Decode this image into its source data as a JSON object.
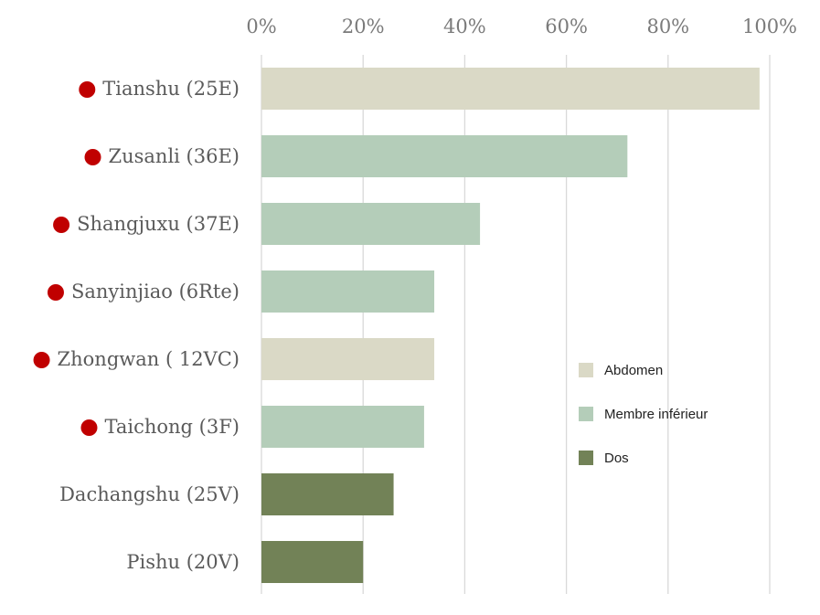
{
  "chart_data": {
    "type": "bar",
    "orientation": "horizontal",
    "categories": [
      "Tianshu (25E)",
      "Zusanli (36E)",
      "Shangjuxu (37E)",
      "Sanyinjiao (6Rte)",
      "Zhongwan ( 12VC)",
      "Taichong (3F)",
      "Dachangshu (25V)",
      "Pishu (20V)"
    ],
    "values": [
      0.98,
      0.72,
      0.43,
      0.34,
      0.34,
      0.32,
      0.26,
      0.2
    ],
    "groups": [
      "Abdomen",
      "Membre inférieur",
      "Membre inférieur",
      "Membre inférieur",
      "Abdomen",
      "Membre inférieur",
      "Dos",
      "Dos"
    ],
    "marked": [
      true,
      true,
      true,
      true,
      true,
      true,
      false,
      false
    ],
    "marker_color": "#c00000",
    "xlim": [
      0,
      1
    ],
    "x_ticks": [
      0,
      0.2,
      0.4,
      0.6,
      0.8,
      1.0
    ],
    "x_tick_labels": [
      "0%",
      "20%",
      "40%",
      "60%",
      "80%",
      "100%"
    ],
    "x_axis_position": "top",
    "grid": true,
    "legend": {
      "placement": "right",
      "entries": [
        {
          "name": "Abdomen",
          "color": "#dad9c6"
        },
        {
          "name": "Membre inférieur",
          "color": "#b4cdb9"
        },
        {
          "name": "Dos",
          "color": "#728257"
        }
      ]
    },
    "title": "",
    "xlabel": "",
    "ylabel": ""
  }
}
